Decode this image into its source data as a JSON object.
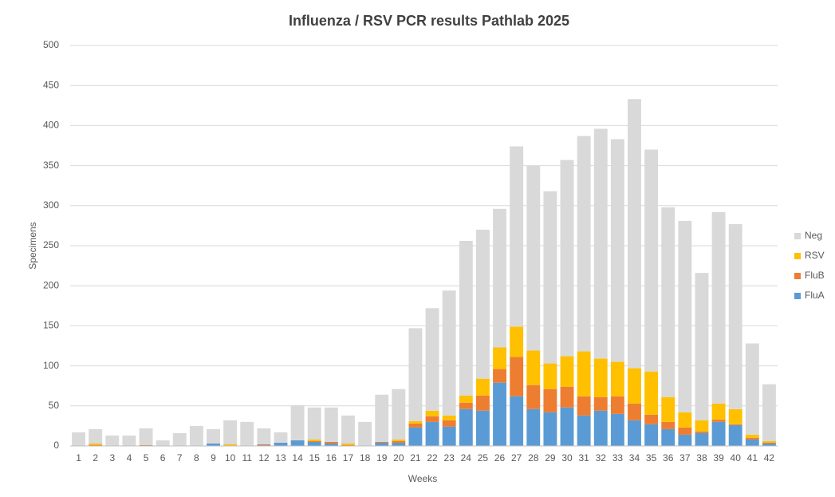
{
  "chart_data": {
    "type": "stacked_bar",
    "title": "Influenza / RSV PCR results Pathlab 2025",
    "x_label": "Weeks",
    "y_label": "Specimens",
    "categories": [
      "1",
      "2",
      "3",
      "4",
      "5",
      "6",
      "7",
      "8",
      "9",
      "10",
      "11",
      "12",
      "13",
      "14",
      "15",
      "16",
      "17",
      "18",
      "19",
      "20",
      "21",
      "22",
      "23",
      "24",
      "25",
      "26",
      "27",
      "28",
      "29",
      "30",
      "31",
      "32",
      "33",
      "34",
      "35",
      "36",
      "37",
      "38",
      "39",
      "40",
      "41",
      "42"
    ],
    "series": [
      {
        "name": "FluA",
        "color": "#5b9bd5",
        "values": [
          0,
          0,
          0,
          0,
          0,
          0,
          0,
          0,
          3,
          0,
          0,
          1,
          4,
          7,
          5,
          3,
          0,
          0,
          4,
          4,
          23,
          30,
          24,
          46,
          44,
          79,
          62,
          46,
          42,
          48,
          38,
          44,
          40,
          32,
          27,
          21,
          14,
          16,
          30,
          26,
          8,
          3
        ]
      },
      {
        "name": "FluB",
        "color": "#ed7d31",
        "values": [
          0,
          1,
          0,
          0,
          1,
          0,
          0,
          0,
          0,
          0,
          0,
          1,
          0,
          0,
          1,
          2,
          1,
          0,
          1,
          2,
          5,
          7,
          8,
          8,
          19,
          17,
          49,
          30,
          29,
          26,
          24,
          17,
          22,
          21,
          12,
          9,
          9,
          2,
          3,
          1,
          2,
          1
        ]
      },
      {
        "name": "RSV",
        "color": "#ffc000",
        "values": [
          0,
          2,
          0,
          0,
          0,
          0,
          0,
          0,
          0,
          2,
          0,
          0,
          0,
          0,
          2,
          0,
          2,
          0,
          0,
          2,
          3,
          7,
          6,
          9,
          21,
          27,
          38,
          43,
          32,
          38,
          56,
          48,
          43,
          44,
          54,
          31,
          19,
          14,
          20,
          19,
          4,
          2
        ]
      },
      {
        "name": "Neg",
        "color": "#d9d9d9",
        "values": [
          17,
          18,
          13,
          13,
          21,
          7,
          16,
          25,
          18,
          30,
          30,
          20,
          13,
          44,
          40,
          43,
          35,
          30,
          59,
          63,
          116,
          128,
          156,
          193,
          186,
          173,
          225,
          231,
          215,
          245,
          269,
          287,
          278,
          336,
          277,
          237,
          239,
          184,
          239,
          231,
          114,
          71
        ]
      }
    ],
    "ylim": [
      0,
      500
    ],
    "yticks": [
      0,
      50,
      100,
      150,
      200,
      250,
      300,
      350,
      400,
      450,
      500
    ],
    "grid": true,
    "legend": "right"
  }
}
